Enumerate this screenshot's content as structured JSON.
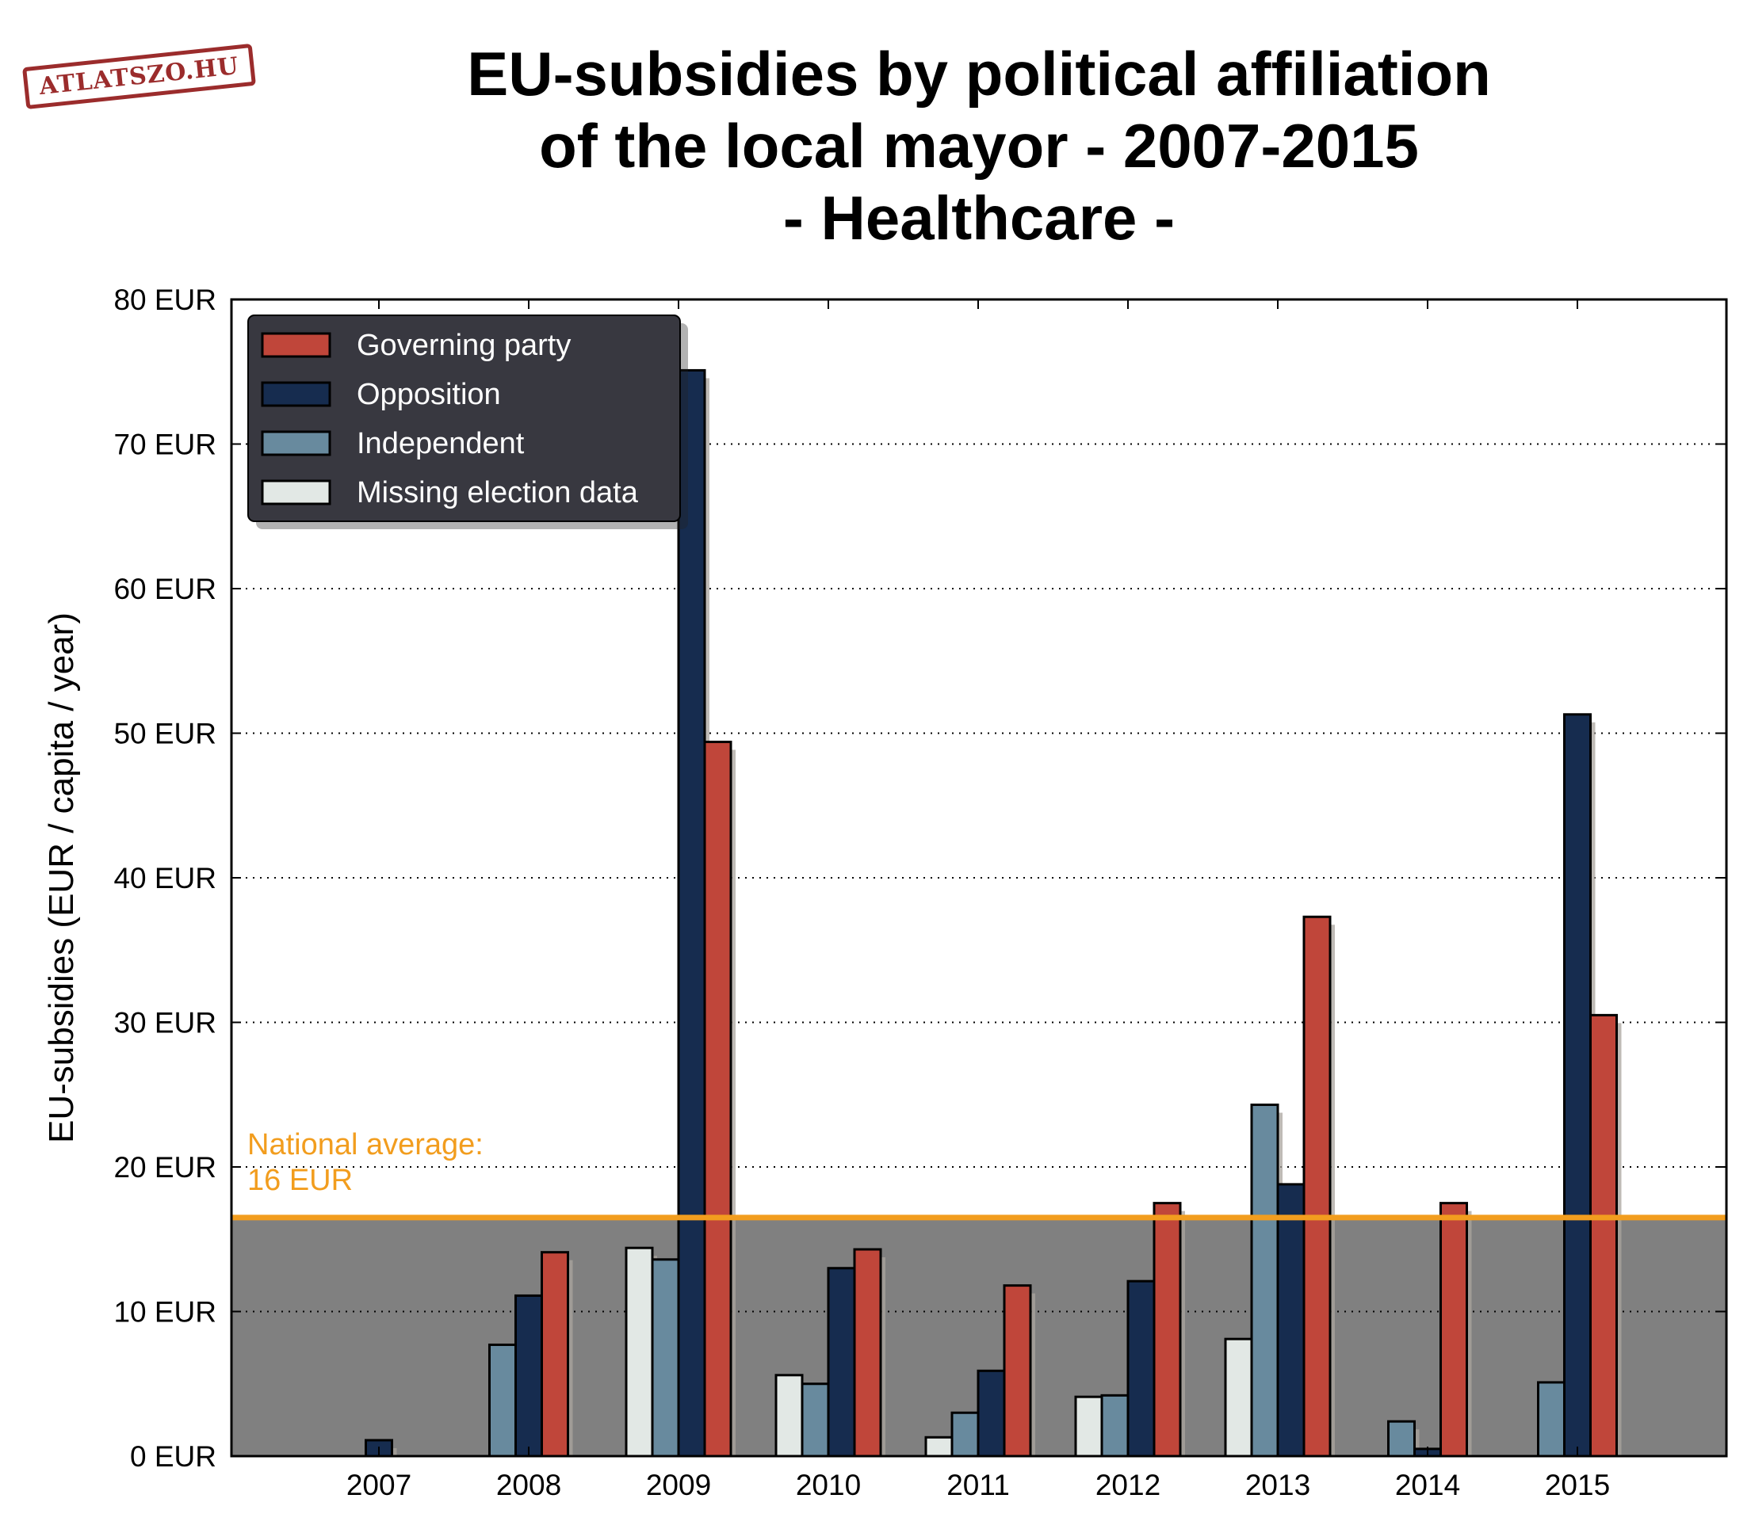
{
  "logo_text": "ATLATSZO.HU",
  "title_lines": [
    "EU-subsidies by political affiliation",
    "of the local mayor - 2007-2015",
    "- Healthcare -"
  ],
  "colors": {
    "governing": "#c0463a",
    "opposition": "#162c4f",
    "independent": "#688a9e",
    "missing": "#e2e8e5",
    "average_line": "#f29d1e",
    "below_average_fill": "#808080",
    "legend_bg": "#383840",
    "shadow": "#a9a49e"
  },
  "chart_data": {
    "type": "bar",
    "title": "EU-subsidies by political affiliation of the local mayor - 2007-2015 - Healthcare -",
    "ylabel": "EU-subsidies (EUR / capita / year)",
    "xlabel": "",
    "ylim": [
      0,
      80
    ],
    "yticks": [
      0,
      10,
      20,
      30,
      40,
      50,
      60,
      70,
      80
    ],
    "ytick_suffix": " EUR",
    "grid": "horizontal dotted",
    "legend_position": "top-left",
    "categories": [
      "2007",
      "2008",
      "2009",
      "2010",
      "2011",
      "2012",
      "2013",
      "2014",
      "2015"
    ],
    "series": [
      {
        "name": "Missing election data",
        "key": "missing",
        "values": [
          null,
          null,
          14.4,
          5.6,
          1.3,
          4.1,
          8.1,
          null,
          null
        ]
      },
      {
        "name": "Independent",
        "key": "independent",
        "values": [
          null,
          7.7,
          13.6,
          5.0,
          3.0,
          4.2,
          24.3,
          2.4,
          5.1
        ]
      },
      {
        "name": "Opposition",
        "key": "opposition",
        "values": [
          1.1,
          11.1,
          75.1,
          13.0,
          5.9,
          12.1,
          18.8,
          0.5,
          51.3
        ]
      },
      {
        "name": "Governing party",
        "key": "governing",
        "values": [
          null,
          14.1,
          49.4,
          14.3,
          11.8,
          17.5,
          37.3,
          17.5,
          30.5
        ]
      }
    ],
    "legend_order": [
      "Governing party",
      "Opposition",
      "Independent",
      "Missing election data"
    ],
    "reference_line": {
      "value": 16.5,
      "label_lines": [
        "National average:",
        "16 EUR"
      ]
    }
  }
}
